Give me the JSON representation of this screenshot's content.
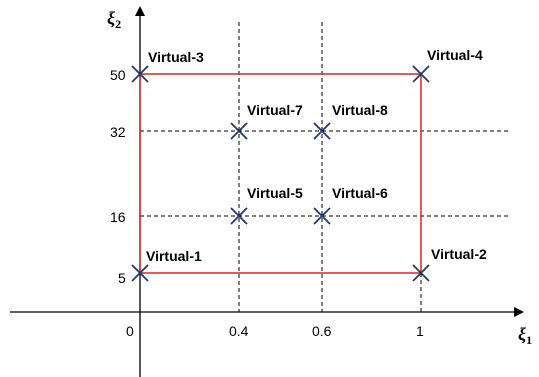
{
  "axes": {
    "x_label": "ξ",
    "x_label_sub": "1",
    "y_label": "ξ",
    "y_label_sub": "2",
    "x_ticks": [
      "0",
      "0.4",
      "0.6",
      "1"
    ],
    "y_ticks": [
      "5",
      "16",
      "32",
      "50"
    ]
  },
  "points": [
    {
      "label": "Virtual-1",
      "x": 0,
      "y": 5
    },
    {
      "label": "Virtual-2",
      "x": 1,
      "y": 5
    },
    {
      "label": "Virtual-3",
      "x": 0,
      "y": 50
    },
    {
      "label": "Virtual-4",
      "x": 1,
      "y": 50
    },
    {
      "label": "Virtual-5",
      "x": 0.4,
      "y": 16
    },
    {
      "label": "Virtual-6",
      "x": 0.6,
      "y": 16
    },
    {
      "label": "Virtual-7",
      "x": 0.4,
      "y": 32
    },
    {
      "label": "Virtual-8",
      "x": 0.6,
      "y": 32
    }
  ],
  "colors": {
    "boundary": "#e03030",
    "marker": "#1f3a6e",
    "axis": "#000000",
    "gridline": "#000000"
  }
}
